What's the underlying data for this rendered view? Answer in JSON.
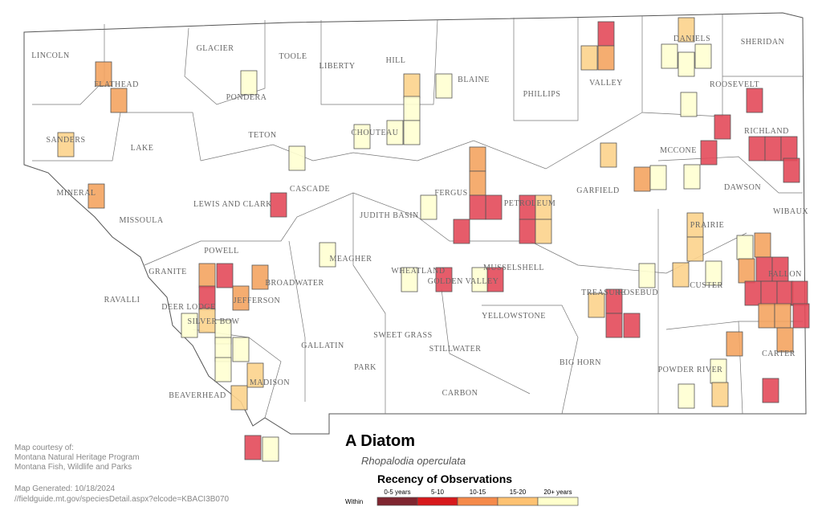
{
  "map": {
    "title": "A Diatom",
    "subtitle": "Rhopalodia operculata",
    "counties": [
      "LINCOLN",
      "FLATHEAD",
      "GLACIER",
      "TOOLE",
      "LIBERTY",
      "HILL",
      "BLAINE",
      "PHILLIPS",
      "VALLEY",
      "DANIELS",
      "SHERIDAN",
      "ROOSEVELT",
      "SANDERS",
      "LAKE",
      "PONDERA",
      "TETON",
      "CHOUTEAU",
      "MCCONE",
      "RICHLAND",
      "MINERAL",
      "MISSOULA",
      "LEWIS AND CLARK",
      "CASCADE",
      "FERGUS",
      "PETROLEUM",
      "GARFIELD",
      "DAWSON",
      "WIBAUX",
      "JUDITH BASIN",
      "POWELL",
      "GRANITE",
      "MEAGHER",
      "PRAIRIE",
      "BROADWATER",
      "WHEATLAND",
      "GOLDEN VALLEY",
      "MUSSELSHELL",
      "CUSTER",
      "FALLON",
      "RAVALLI",
      "DEER LODGE",
      "JEFFERSON",
      "SILVER BOW",
      "TREASURE",
      "ROSEBUD",
      "YELLOWSTONE",
      "GALLATIN",
      "SWEET GRASS",
      "STILLWATER",
      "CARTER",
      "PARK",
      "BIG HORN",
      "POWDER RIVER",
      "MADISON",
      "CARBON",
      "BEAVERHEAD"
    ],
    "legend": {
      "title": "Recency of Observations",
      "label": "Within",
      "classes": [
        {
          "label": "0-5 years",
          "color": "#7f2630"
        },
        {
          "label": "5-10",
          "color": "#d7191c"
        },
        {
          "label": "10-15",
          "color": "#f58a4b"
        },
        {
          "label": "15-20",
          "color": "#fdc272"
        },
        {
          "label": "20+ years",
          "color": "#ffffcc"
        }
      ]
    },
    "credits": [
      "Map courtesy of:",
      "Montana Natural Heritage Program",
      "Montana Fish, Wildlife and Parks"
    ],
    "generated": "Map Generated: 10/18/2024",
    "url": "//fieldguide.mt.gov/speciesDetail.aspx?elcode=KBACI3B070"
  }
}
